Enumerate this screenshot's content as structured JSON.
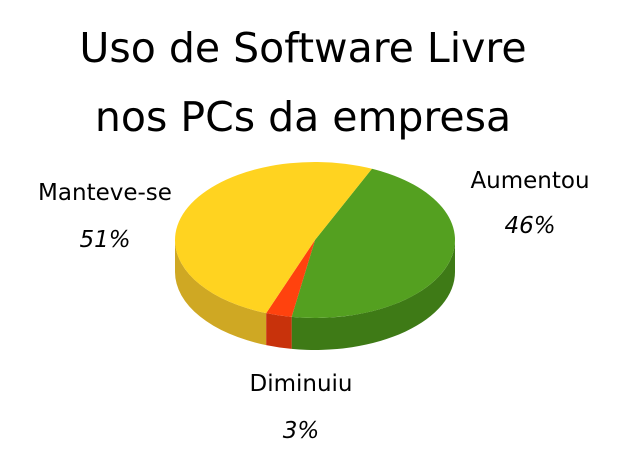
{
  "chart_data": {
    "type": "pie",
    "title_lines": [
      "Uso de Software Livre",
      "nos PCs da empresa"
    ],
    "slices": [
      {
        "name": "Aumentou",
        "value": 46,
        "label": "46%",
        "color": "#54a020",
        "side_color": "#3e7a16"
      },
      {
        "name": "Diminuiu",
        "value": 3,
        "label": "3%",
        "color": "#ff420e",
        "side_color": "#c8320b"
      },
      {
        "name": "Manteve-se",
        "value": 51,
        "label": "51%",
        "color": "#ffd320",
        "side_color": "#cfa823"
      }
    ],
    "style": "3d"
  }
}
